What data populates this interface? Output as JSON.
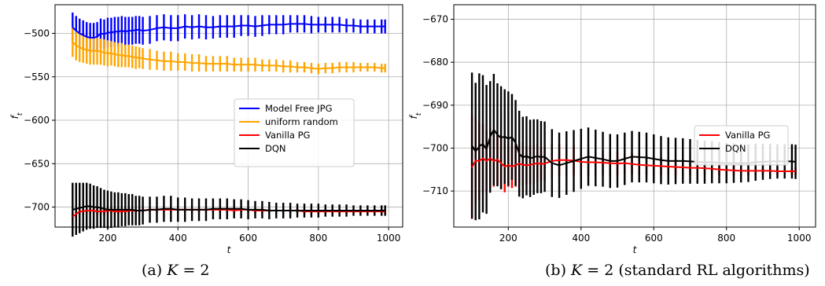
{
  "chart_data": [
    {
      "type": "line",
      "panel": "(a)",
      "caption_label": "(a)",
      "caption_var": "K",
      "caption_rest": " = 2",
      "xlabel": "t",
      "ylabel": "f",
      "ylabel_sub": "t",
      "xlim": [
        50,
        1040
      ],
      "ylim": [
        -723,
        -467
      ],
      "xticks": [
        200,
        400,
        600,
        800,
        1000
      ],
      "yticks": [
        -500,
        -550,
        -600,
        -650,
        -700
      ],
      "grid": true,
      "legend_position": "center-right",
      "legend": [
        "Model Free JPG",
        "uniform random",
        "Vanilla PG",
        "DQN"
      ],
      "x": [
        100,
        110,
        120,
        130,
        140,
        150,
        160,
        170,
        180,
        190,
        200,
        210,
        220,
        230,
        240,
        250,
        260,
        270,
        280,
        290,
        300,
        320,
        340,
        360,
        380,
        400,
        420,
        440,
        460,
        480,
        500,
        520,
        540,
        560,
        580,
        600,
        620,
        640,
        660,
        680,
        700,
        720,
        740,
        760,
        780,
        800,
        820,
        840,
        860,
        880,
        900,
        920,
        940,
        960,
        980,
        990
      ],
      "series": [
        {
          "name": "Model Free JPG",
          "color": "#0000ff",
          "values": [
            -493,
            -497,
            -500,
            -502,
            -504,
            -505,
            -505,
            -504,
            -500,
            -501,
            -499,
            -499,
            -498,
            -498,
            -497,
            -498,
            -497,
            -497,
            -496,
            -496,
            -497,
            -496,
            -494,
            -493,
            -494,
            -494,
            -492,
            -493,
            -492,
            -493,
            -493,
            -492,
            -492,
            -492,
            -491,
            -491,
            -492,
            -491,
            -490,
            -490,
            -490,
            -489,
            -489,
            -489,
            -490,
            -490,
            -490,
            -490,
            -490,
            -491,
            -491,
            -492,
            -492,
            -492,
            -492,
            -492
          ],
          "err": [
            17,
            17,
            17,
            17,
            17,
            17,
            17,
            17,
            17,
            17,
            17,
            17,
            17,
            17,
            17,
            17,
            16,
            16,
            16,
            16,
            16,
            16,
            15,
            15,
            15,
            15,
            14,
            14,
            14,
            14,
            13,
            13,
            13,
            13,
            12,
            12,
            12,
            12,
            11,
            11,
            11,
            10,
            10,
            10,
            10,
            9,
            9,
            9,
            9,
            8,
            8,
            8,
            8,
            8,
            8,
            8
          ]
        },
        {
          "name": "uniform random",
          "color": "#ffa500",
          "values": [
            -510,
            -514,
            -516,
            -518,
            -519,
            -520,
            -520,
            -520,
            -521,
            -522,
            -523,
            -523,
            -524,
            -525,
            -525,
            -526,
            -526,
            -527,
            -528,
            -528,
            -529,
            -530,
            -531,
            -532,
            -532,
            -533,
            -533,
            -534,
            -534,
            -535,
            -535,
            -535,
            -535,
            -536,
            -536,
            -536,
            -536,
            -537,
            -537,
            -537,
            -538,
            -538,
            -539,
            -539,
            -540,
            -541,
            -540,
            -540,
            -539,
            -539,
            -539,
            -539,
            -539,
            -539,
            -540,
            -540
          ],
          "err": [
            17,
            17,
            17,
            16,
            16,
            16,
            16,
            16,
            15,
            15,
            15,
            14,
            14,
            14,
            14,
            13,
            13,
            13,
            13,
            12,
            12,
            12,
            11,
            11,
            11,
            10,
            10,
            10,
            10,
            9,
            9,
            9,
            9,
            8,
            8,
            8,
            8,
            7,
            7,
            7,
            7,
            7,
            6,
            6,
            6,
            6,
            6,
            6,
            6,
            6,
            6,
            5,
            5,
            5,
            5,
            5
          ]
        },
        {
          "name": "Vanilla PG",
          "color": "#ff0000",
          "values": [
            -711,
            -708,
            -705,
            -705,
            -704,
            -704,
            -704,
            -705,
            -705,
            -705,
            -704,
            -704,
            -705,
            -705,
            -705,
            -705,
            -704,
            -704,
            -704,
            -704,
            -704,
            -703,
            -703,
            -703,
            -703,
            -703,
            -703,
            -703,
            -703,
            -703,
            -703,
            -703,
            -703,
            -704,
            -703,
            -703,
            -704,
            -704,
            -704,
            -704,
            -704,
            -704,
            -704,
            -705,
            -705,
            -705,
            -705,
            -705,
            -705,
            -705,
            -705,
            -705,
            -705,
            -705,
            -705,
            -705
          ],
          "err": [
            6,
            5,
            4,
            4,
            4,
            4,
            4,
            4,
            4,
            4,
            4,
            3,
            3,
            3,
            3,
            3,
            3,
            3,
            3,
            3,
            3,
            3,
            3,
            3,
            3,
            3,
            3,
            3,
            3,
            3,
            3,
            3,
            3,
            3,
            3,
            3,
            3,
            3,
            3,
            3,
            3,
            3,
            3,
            2,
            2,
            2,
            2,
            2,
            2,
            2,
            2,
            2,
            2,
            2,
            2,
            2
          ]
        },
        {
          "name": "DQN",
          "color": "#000000",
          "values": [
            -703,
            -702,
            -701,
            -700,
            -699,
            -699,
            -700,
            -700,
            -701,
            -702,
            -703,
            -703,
            -703,
            -703,
            -703,
            -703,
            -703,
            -703,
            -704,
            -704,
            -704,
            -703,
            -703,
            -702,
            -702,
            -703,
            -703,
            -703,
            -703,
            -703,
            -702,
            -702,
            -702,
            -702,
            -702,
            -703,
            -703,
            -703,
            -704,
            -704,
            -704,
            -704,
            -704,
            -704,
            -704,
            -704,
            -704,
            -704,
            -704,
            -704,
            -704,
            -704,
            -704,
            -704,
            -704,
            -704
          ],
          "err": [
            31,
            30,
            29,
            28,
            27,
            26,
            25,
            24,
            23,
            22,
            22,
            21,
            20,
            20,
            19,
            19,
            18,
            18,
            17,
            17,
            16,
            15,
            15,
            15,
            15,
            14,
            14,
            13,
            13,
            13,
            12,
            12,
            12,
            11,
            11,
            11,
            10,
            10,
            10,
            9,
            9,
            9,
            8,
            8,
            8,
            8,
            7,
            7,
            7,
            7,
            6,
            6,
            6,
            6,
            6,
            6
          ]
        }
      ]
    },
    {
      "type": "line",
      "panel": "(b)",
      "caption_label": "(b)",
      "caption_var": "K",
      "caption_rest": " = 2 (standard RL algorithms)",
      "xlabel": "t",
      "ylabel": "f",
      "ylabel_sub": "t",
      "xlim": [
        50,
        1045
      ],
      "ylim": [
        -718.4,
        -666.6
      ],
      "xticks": [
        200,
        400,
        600,
        800,
        1000
      ],
      "yticks": [
        -670,
        -680,
        -690,
        -700,
        -710
      ],
      "grid": true,
      "legend_position": "center-right",
      "legend": [
        "Vanilla PG",
        "DQN"
      ],
      "x": [
        100,
        110,
        120,
        130,
        140,
        150,
        160,
        170,
        180,
        190,
        200,
        210,
        220,
        230,
        240,
        250,
        260,
        270,
        280,
        290,
        300,
        320,
        340,
        360,
        380,
        400,
        420,
        440,
        460,
        480,
        500,
        520,
        540,
        560,
        580,
        600,
        620,
        640,
        660,
        680,
        700,
        720,
        740,
        760,
        780,
        800,
        820,
        840,
        860,
        880,
        900,
        920,
        940,
        960,
        980,
        990
      ],
      "series": [
        {
          "name": "Vanilla PG",
          "color": "#ff0000",
          "values": [
            -704.5,
            -702.9,
            -703.0,
            -702.4,
            -703.0,
            -702.4,
            -703.0,
            -702.7,
            -703.5,
            -704.3,
            -704.0,
            -704.3,
            -704.0,
            -703.6,
            -703.9,
            -704.0,
            -703.9,
            -703.7,
            -703.5,
            -703.7,
            -703.6,
            -703.0,
            -702.8,
            -702.8,
            -702.9,
            -703.2,
            -703.3,
            -703.3,
            -703.4,
            -703.5,
            -703.6,
            -703.5,
            -703.7,
            -703.9,
            -704.0,
            -704.1,
            -704.2,
            -704.3,
            -704.4,
            -704.5,
            -704.6,
            -704.6,
            -704.7,
            -704.8,
            -705.0,
            -705.1,
            -705.2,
            -705.3,
            -705.3,
            -705.3,
            -705.3,
            -705.3,
            -705.4,
            -705.4,
            -705.4,
            -705.4
          ],
          "err": [
            12,
            10,
            9,
            8,
            7,
            7,
            6,
            6,
            6,
            6,
            5,
            5,
            5,
            5,
            5,
            4.5,
            4.5,
            4.5,
            4.5,
            4,
            4,
            4,
            3.8,
            3.6,
            3.4,
            3.2,
            3.1,
            3,
            2.9,
            2.8,
            2.7,
            2.6,
            2.5,
            2.4,
            2.3,
            2.2,
            2.1,
            2,
            1.9,
            1.8,
            1.7,
            1.6,
            1.5,
            1.4,
            1.4,
            1.3,
            1.2,
            1.2,
            1.1,
            1.1,
            1,
            1,
            1,
            0.9,
            0.9,
            0.9
          ]
        },
        {
          "name": "DQN",
          "color": "#000000",
          "values": [
            -699.4,
            -700.8,
            -699.6,
            -699.0,
            -700.3,
            -697.4,
            -695.7,
            -696.9,
            -697.6,
            -697.3,
            -697.8,
            -697.4,
            -698.8,
            -701.3,
            -702.2,
            -701.8,
            -702.4,
            -702.1,
            -701.9,
            -702.1,
            -702.0,
            -703.5,
            -704.0,
            -703.5,
            -703.0,
            -702.5,
            -702.0,
            -702.3,
            -702.6,
            -703.0,
            -703.0,
            -702.5,
            -702.0,
            -702.1,
            -702.2,
            -702.5,
            -702.8,
            -703.0,
            -703.0,
            -703.0,
            -703.1,
            -703.2,
            -703.3,
            -703.3,
            -703.4,
            -703.5,
            -703.5,
            -703.5,
            -703.5,
            -703.3,
            -703.2,
            -703.1,
            -703.1,
            -703.1,
            -703.1,
            -703.2
          ],
          "err": [
            17,
            16,
            17,
            16,
            15,
            13,
            13,
            12,
            12,
            11,
            11,
            10,
            10,
            10,
            9.5,
            9.2,
            9,
            8.8,
            8.6,
            8.4,
            8.2,
            7.9,
            7.6,
            7.4,
            7.2,
            7,
            6.8,
            6.6,
            6.4,
            6.3,
            6.2,
            6.1,
            6,
            5.9,
            5.8,
            5.7,
            5.6,
            5.5,
            5.4,
            5.3,
            5.2,
            5.1,
            5,
            4.9,
            4.8,
            4.7,
            4.6,
            4.5,
            4.4,
            4.3,
            4.2,
            4.1,
            4,
            4,
            4,
            4
          ]
        }
      ]
    }
  ]
}
